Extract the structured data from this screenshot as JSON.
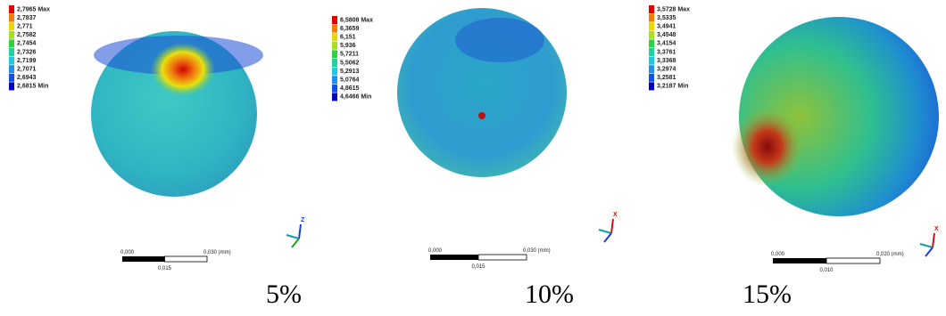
{
  "panels": [
    {
      "legend": [
        "2,7965 Max",
        "2,7837",
        "2,771",
        "2,7582",
        "2,7454",
        "2,7326",
        "2,7199",
        "2,7071",
        "2,6943",
        "2,6815 Min"
      ],
      "scale": {
        "start": "0,000",
        "end": "0,030 (mm)",
        "mid": "0,015"
      },
      "axis": "Z",
      "caption": "5%"
    },
    {
      "legend": [
        "6,5808 Max",
        "6,3659",
        "6,151",
        "5,936",
        "5,7211",
        "5,5062",
        "5,2913",
        "5,0764",
        "4,8615",
        "4,6466 Min"
      ],
      "scale": {
        "start": "0,000",
        "end": "0,030 (mm)",
        "mid": "0,015"
      },
      "axis": "X",
      "caption": "10%"
    },
    {
      "legend": [
        "3,5728 Max",
        "3,5335",
        "3,4941",
        "3,4548",
        "3,4154",
        "3,3761",
        "3,3368",
        "3,2974",
        "3,2581",
        "3,2187 Min"
      ],
      "scale": {
        "start": "0,000",
        "end": "0,020 (mm)",
        "mid": "0,010"
      },
      "axis": "X",
      "caption": "15%"
    }
  ]
}
